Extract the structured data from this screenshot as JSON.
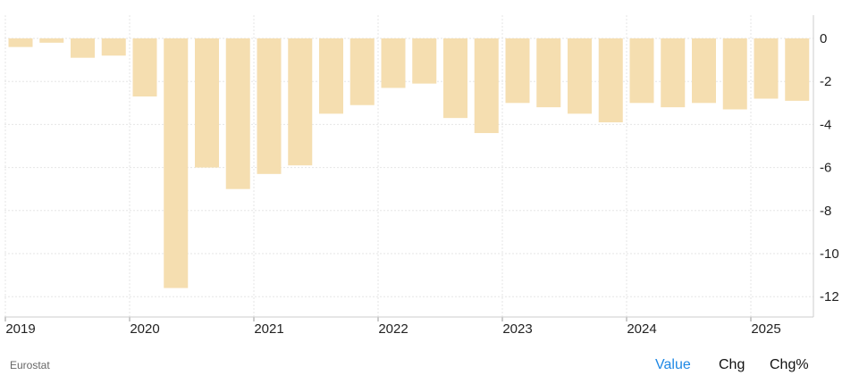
{
  "source": "Eurostat",
  "tabs": [
    {
      "label": "Value",
      "active": true
    },
    {
      "label": "Chg",
      "active": false
    },
    {
      "label": "Chg%",
      "active": false
    }
  ],
  "colors": {
    "bar": "#f5deb0",
    "active_tab": "#1e88e5",
    "grid": "#e6e6e6"
  },
  "chart_data": {
    "type": "bar",
    "categories": [
      "2019Q1",
      "2019Q2",
      "2019Q3",
      "2019Q4",
      "2020Q1",
      "2020Q2",
      "2020Q3",
      "2020Q4",
      "2021Q1",
      "2021Q2",
      "2021Q3",
      "2021Q4",
      "2022Q1",
      "2022Q2",
      "2022Q3",
      "2022Q4",
      "2023Q1",
      "2023Q2",
      "2023Q3",
      "2023Q4",
      "2024Q1",
      "2024Q2",
      "2024Q3",
      "2024Q4",
      "2025Q1",
      "2025Q2"
    ],
    "values": [
      -0.4,
      -0.2,
      -0.9,
      -0.8,
      -2.7,
      -11.6,
      -6.0,
      -7.0,
      -6.3,
      -5.9,
      -3.5,
      -3.1,
      -2.3,
      -2.1,
      -3.7,
      -4.4,
      -3.0,
      -3.2,
      -3.5,
      -3.9,
      -3.0,
      -3.2,
      -3.0,
      -3.3,
      -2.8,
      -2.9
    ],
    "ylim": [
      -12.5,
      0.5
    ],
    "yticks": [
      "0",
      "-2",
      "-4",
      "-6",
      "-8",
      "-10",
      "-12"
    ],
    "ytick_values": [
      0,
      -2,
      -4,
      -6,
      -8,
      -10,
      -12
    ],
    "xticks": [
      "2019",
      "2020",
      "2021",
      "2022",
      "2023",
      "2024",
      "2025"
    ],
    "y_axis_position": "right",
    "grid": true
  }
}
